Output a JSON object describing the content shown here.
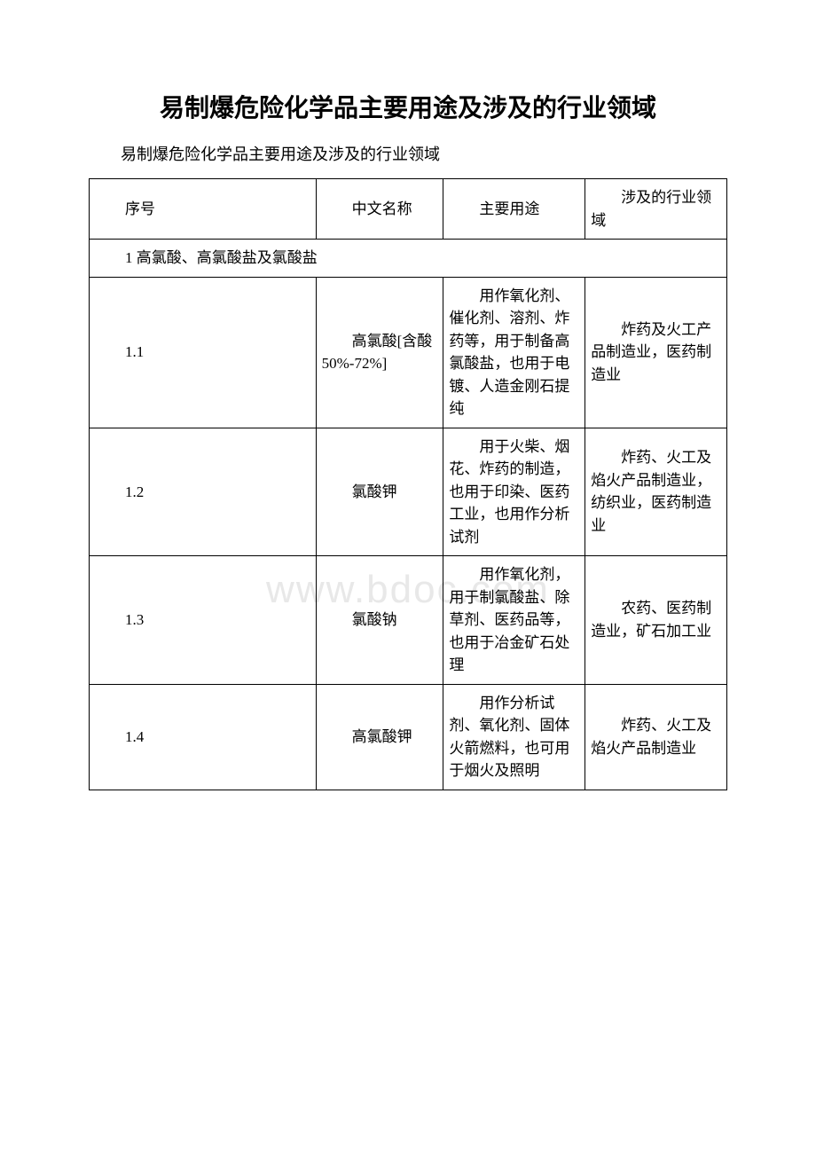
{
  "title": "易制爆危险化学品主要用途及涉及的行业领域",
  "subtitle": "易制爆危险化学品主要用途及涉及的行业领域",
  "watermark": "www.bdoc.com",
  "table": {
    "headers": {
      "seq": "序号",
      "name": "中文名称",
      "use": "主要用途",
      "industry": "涉及的行业领域"
    },
    "section": "1 高氯酸、高氯酸盐及氯酸盐",
    "rows": [
      {
        "seq": "1.1",
        "name": "高氯酸[含酸 50%-72%]",
        "use": "用作氧化剂、催化剂、溶剂、炸药等，用于制备高氯酸盐，也用于电镀、人造金刚石提纯",
        "industry": "炸药及火工产品制造业，医药制造业"
      },
      {
        "seq": "1.2",
        "name": "氯酸钾",
        "use": "用于火柴、烟花、炸药的制造，也用于印染、医药工业，也用作分析试剂",
        "industry": "炸药、火工及焰火产品制造业，纺织业，医药制造业"
      },
      {
        "seq": "1.3",
        "name": "氯酸钠",
        "use": "用作氧化剂，用于制氯酸盐、除草剂、医药品等，也用于冶金矿石处理",
        "industry": "农药、医药制造业，矿石加工业"
      },
      {
        "seq": "1.4",
        "name": "高氯酸钾",
        "use": "用作分析试剂、氧化剂、固体火箭燃料，也可用于烟火及照明",
        "industry": "炸药、火工及焰火产品制造业"
      }
    ]
  },
  "colors": {
    "background": "#ffffff",
    "text": "#000000",
    "border": "#000000",
    "watermark": "#e8e8e8"
  }
}
